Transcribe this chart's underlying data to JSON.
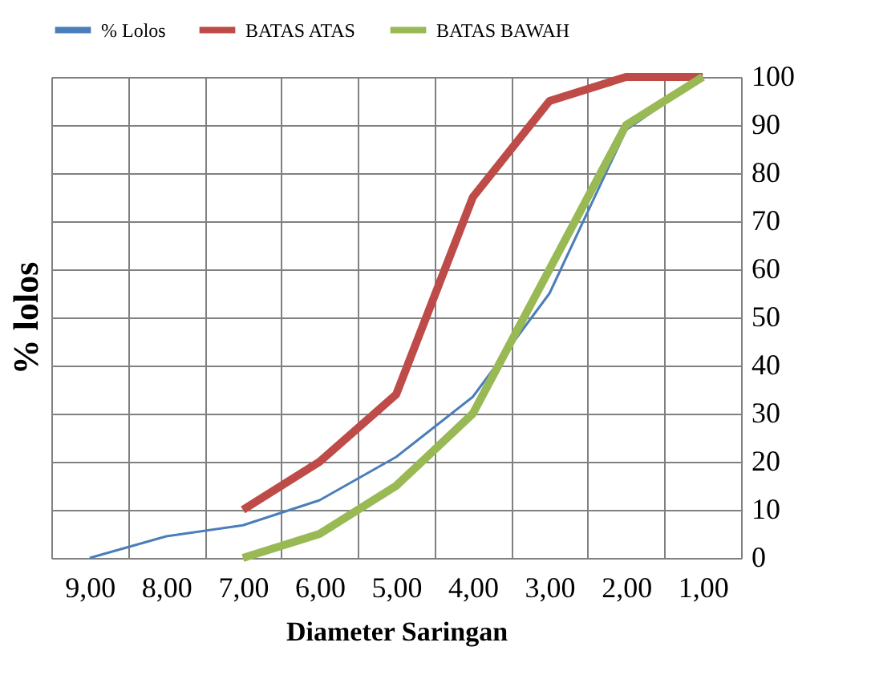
{
  "chart_data": {
    "type": "line",
    "categories": [
      "9,00",
      "8,00",
      "7,00",
      "6,00",
      "5,00",
      "4,00",
      "3,00",
      "2,00",
      "1,00"
    ],
    "series": [
      {
        "name": "% Lolos",
        "color": "#4a7ebb",
        "values": [
          0,
          4.5,
          6.8,
          12,
          21,
          33.5,
          55,
          89,
          100
        ]
      },
      {
        "name": "BATAS ATAS",
        "color": "#be4b48",
        "values": [
          null,
          null,
          10,
          20,
          34,
          75,
          95,
          100,
          100
        ]
      },
      {
        "name": "BATAS BAWAH",
        "color": "#98b954",
        "values": [
          null,
          null,
          0,
          5,
          15,
          30,
          60,
          90,
          100
        ]
      }
    ],
    "xlabel": "Diameter Saringan",
    "ylabel": "% lolos",
    "ylim": [
      0,
      100
    ],
    "yticks": [
      0,
      10,
      20,
      30,
      40,
      50,
      60,
      70,
      80,
      90,
      100
    ],
    "grid": true,
    "legend": "top",
    "marker": "none",
    "line_style": "solid"
  }
}
